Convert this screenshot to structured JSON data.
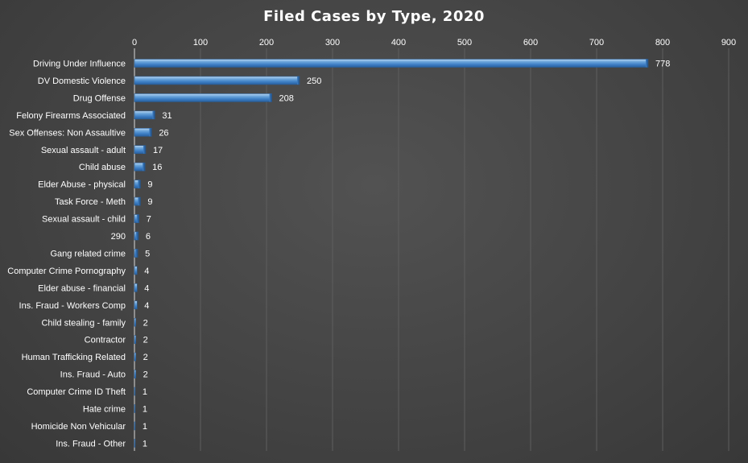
{
  "chart_data": {
    "type": "bar",
    "orientation": "horizontal",
    "title": "Filed Cases by Type, 2020",
    "xlabel": "",
    "ylabel": "",
    "xlim": [
      0,
      900
    ],
    "x_ticks": [
      0,
      100,
      200,
      300,
      400,
      500,
      600,
      700,
      800,
      900
    ],
    "x_axis_position": "top",
    "grid": true,
    "legend": "none",
    "bar_color": "#5b9bd5",
    "categories": [
      "Driving Under Influence",
      "DV Domestic Violence",
      "Drug Offense",
      "Felony Firearms Associated",
      "Sex Offenses: Non Assaultive",
      "Sexual assault - adult",
      "Child abuse",
      "Elder Abuse - physical",
      "Task Force - Meth",
      "Sexual assault - child",
      "290",
      "Gang related crime",
      "Computer Crime Pornography",
      "Elder abuse - financial",
      "Ins. Fraud - Workers Comp",
      "Child stealing - family",
      "Contractor",
      "Human Trafficking Related",
      "Ins. Fraud - Auto",
      "Computer Crime ID Theft",
      "Hate crime",
      "Homicide Non Vehicular",
      "Ins. Fraud - Other"
    ],
    "values": [
      778,
      250,
      208,
      31,
      26,
      17,
      16,
      9,
      9,
      7,
      6,
      5,
      4,
      4,
      4,
      2,
      2,
      2,
      2,
      1,
      1,
      1,
      1
    ]
  }
}
